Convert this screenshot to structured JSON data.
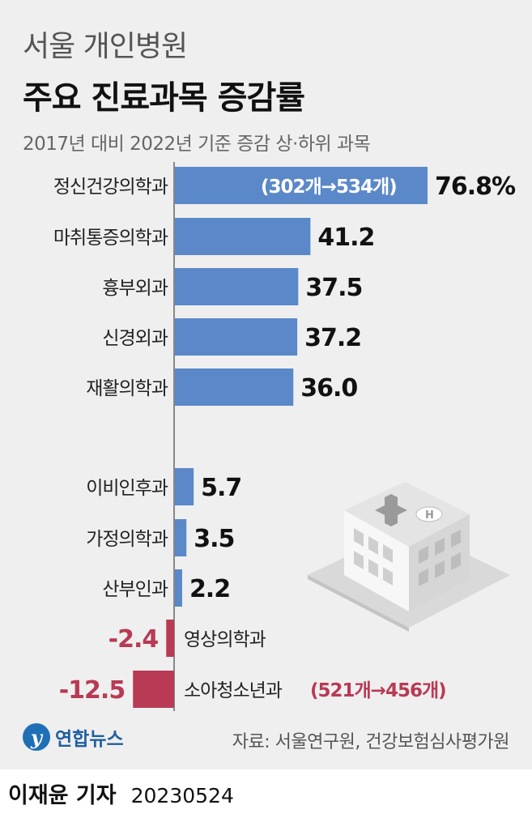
{
  "header": {
    "title_line1": "서울 개인병원",
    "title_line2": "주요 진료과목 증감률",
    "subtitle": "2017년 대비 2022년 기준 증감 상·하위 과목"
  },
  "chart_data": {
    "type": "bar",
    "orientation": "horizontal",
    "unit": "%",
    "categories": [
      "정신건강의학과",
      "마취통증의학과",
      "흉부외과",
      "신경외과",
      "재활의학과",
      "이비인후과",
      "가정의학과",
      "산부인과",
      "영상의학과",
      "소아청소년과"
    ],
    "values": [
      76.8,
      41.2,
      37.5,
      37.2,
      36.0,
      5.7,
      3.5,
      2.2,
      -2.4,
      -12.5
    ],
    "value_labels": [
      "76.8%",
      "41.2",
      "37.5",
      "37.2",
      "36.0",
      "5.7",
      "3.5",
      "2.2",
      "-2.4",
      "-12.5"
    ],
    "annotations": [
      {
        "category": "정신건강의학과",
        "text": "(302개→534개)"
      },
      {
        "category": "소아청소년과",
        "text": "(521개→456개)"
      }
    ],
    "colors": {
      "positive": "#5b88c8",
      "negative": "#b83a55",
      "axis": "#888888"
    }
  },
  "footer": {
    "source": "자료: 서울연구원, 건강보험심사평가원",
    "logo_text": "연합뉴스",
    "logo_letter": "y",
    "reporter": "이재윤 기자",
    "date": "20230524"
  }
}
